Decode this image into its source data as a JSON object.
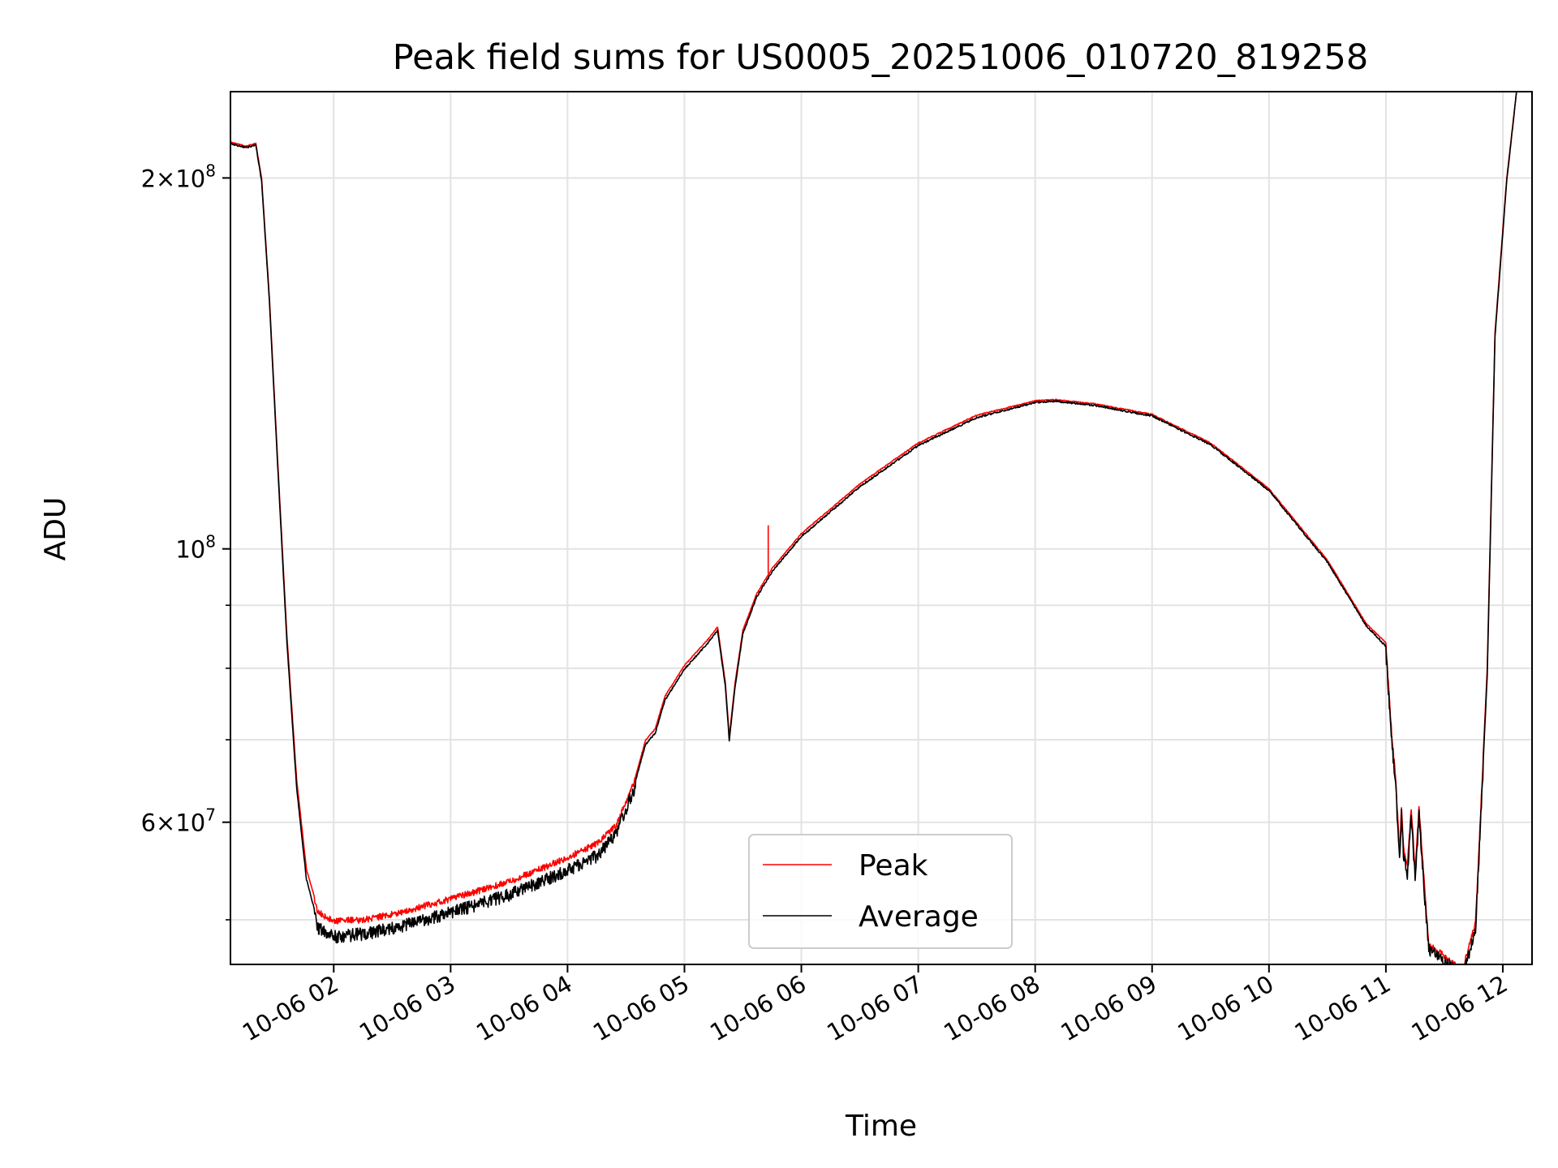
{
  "chart_data": {
    "type": "line",
    "title": "Peak field sums for US0005_20251006_010720_819258",
    "xlabel": "Time",
    "ylabel": "ADU",
    "x_axis_type": "datetime",
    "y_scale": "log",
    "xlim": [
      "2025-10-06 01:07",
      "2025-10-06 12:15"
    ],
    "ylim": [
      46000000,
      235000000
    ],
    "grid": true,
    "legend_position": "lower-center",
    "x_tick_labels": [
      "10-06 02",
      "10-06 03",
      "10-06 04",
      "10-06 05",
      "10-06 06",
      "10-06 07",
      "10-06 08",
      "10-06 09",
      "10-06 10",
      "10-06 11",
      "10-06 12"
    ],
    "x_ticks": [
      "2025-10-06 02:00",
      "2025-10-06 03:00",
      "2025-10-06 04:00",
      "2025-10-06 05:00",
      "2025-10-06 06:00",
      "2025-10-06 07:00",
      "2025-10-06 08:00",
      "2025-10-06 09:00",
      "2025-10-06 10:00",
      "2025-10-06 11:00",
      "2025-10-06 12:00"
    ],
    "y_major_ticks": [
      {
        "value": 200000000,
        "mantissa": "2",
        "exponent": "8"
      },
      {
        "value": 100000000,
        "mantissa": "",
        "exponent": "8"
      },
      {
        "value": 60000000,
        "mantissa": "6",
        "exponent": "7"
      }
    ],
    "y_minor_grid": [
      50000000,
      70000000,
      80000000,
      90000000
    ],
    "series": [
      {
        "name": "Peak",
        "color": "#ff0000",
        "noise": 0.012,
        "points": [
          [
            "2025-10-06 01:07",
            214000000
          ],
          [
            "2025-10-06 01:15",
            212500000
          ],
          [
            "2025-10-06 01:20",
            213500000
          ],
          [
            "2025-10-06 01:23",
            200000000
          ],
          [
            "2025-10-06 01:27",
            160000000
          ],
          [
            "2025-10-06 01:31",
            120000000
          ],
          [
            "2025-10-06 01:36",
            85000000
          ],
          [
            "2025-10-06 01:41",
            65000000
          ],
          [
            "2025-10-06 01:46",
            55000000
          ],
          [
            "2025-10-06 01:52",
            51000000
          ],
          [
            "2025-10-06 02:00",
            50200000
          ],
          [
            "2025-10-06 02:15",
            50300000
          ],
          [
            "2025-10-06 02:30",
            50800000
          ],
          [
            "2025-10-06 03:00",
            52300000
          ],
          [
            "2025-10-06 03:30",
            54000000
          ],
          [
            "2025-10-06 04:00",
            56500000
          ],
          [
            "2025-10-06 04:15",
            58000000
          ],
          [
            "2025-10-06 04:25",
            60000000
          ],
          [
            "2025-10-06 04:35",
            65500000
          ],
          [
            "2025-10-06 04:40",
            70000000
          ],
          [
            "2025-10-06 04:45",
            71500000
          ],
          [
            "2025-10-06 04:50",
            76000000
          ],
          [
            "2025-10-06 05:00",
            80500000
          ],
          [
            "2025-10-06 05:12",
            84500000
          ],
          [
            "2025-10-06 05:17",
            86500000
          ],
          [
            "2025-10-06 05:21",
            78000000
          ],
          [
            "2025-10-06 05:23",
            70500000
          ],
          [
            "2025-10-06 05:26",
            78000000
          ],
          [
            "2025-10-06 05:30",
            86000000
          ],
          [
            "2025-10-06 05:37",
            92000000
          ],
          [
            "2025-10-06 05:45",
            96500000
          ],
          [
            "2025-10-06 06:00",
            103000000
          ],
          [
            "2025-10-06 06:30",
            113000000
          ],
          [
            "2025-10-06 07:00",
            122000000
          ],
          [
            "2025-10-06 07:30",
            128500000
          ],
          [
            "2025-10-06 08:00",
            132000000
          ],
          [
            "2025-10-06 08:10",
            132300000
          ],
          [
            "2025-10-06 08:30",
            131300000
          ],
          [
            "2025-10-06 09:00",
            128700000
          ],
          [
            "2025-10-06 09:30",
            122000000
          ],
          [
            "2025-10-06 10:00",
            112000000
          ],
          [
            "2025-10-06 10:30",
            98000000
          ],
          [
            "2025-10-06 10:50",
            87000000
          ],
          [
            "2025-10-06 11:00",
            84000000
          ],
          [
            "2025-10-06 11:03",
            71000000
          ],
          [
            "2025-10-06 11:05",
            65500000
          ],
          [
            "2025-10-06 11:07",
            57000000
          ],
          [
            "2025-10-06 11:08",
            62000000
          ],
          [
            "2025-10-06 11:09",
            57500000
          ],
          [
            "2025-10-06 11:11",
            55500000
          ],
          [
            "2025-10-06 11:13",
            62000000
          ],
          [
            "2025-10-06 11:15",
            55000000
          ],
          [
            "2025-10-06 11:17",
            62000000
          ],
          [
            "2025-10-06 11:20",
            53000000
          ],
          [
            "2025-10-06 11:22",
            48000000
          ],
          [
            "2025-10-06 11:30",
            47000000
          ],
          [
            "2025-10-06 11:37",
            46000000
          ],
          [
            "2025-10-06 11:40",
            46200000
          ],
          [
            "2025-10-06 11:46",
            50000000
          ],
          [
            "2025-10-06 11:52",
            80000000
          ],
          [
            "2025-10-06 11:56",
            150000000
          ],
          [
            "2025-10-06 12:02",
            200000000
          ],
          [
            "2025-10-06 12:07",
            235000000
          ]
        ]
      },
      {
        "name": "Average",
        "color": "#000000",
        "noise": 0.015,
        "points": [
          [
            "2025-10-06 01:07",
            213500000
          ],
          [
            "2025-10-06 01:15",
            212000000
          ],
          [
            "2025-10-06 01:20",
            213000000
          ],
          [
            "2025-10-06 01:23",
            199000000
          ],
          [
            "2025-10-06 01:27",
            159000000
          ],
          [
            "2025-10-06 01:31",
            119000000
          ],
          [
            "2025-10-06 01:36",
            84000000
          ],
          [
            "2025-10-06 01:41",
            64000000
          ],
          [
            "2025-10-06 01:46",
            54000000
          ],
          [
            "2025-10-06 01:52",
            49800000
          ],
          [
            "2025-10-06 02:00",
            49000000
          ],
          [
            "2025-10-06 02:15",
            49300000
          ],
          [
            "2025-10-06 02:30",
            49800000
          ],
          [
            "2025-10-06 03:00",
            51300000
          ],
          [
            "2025-10-06 03:30",
            53000000
          ],
          [
            "2025-10-06 04:00",
            55500000
          ],
          [
            "2025-10-06 04:15",
            57000000
          ],
          [
            "2025-10-06 04:25",
            59500000
          ],
          [
            "2025-10-06 04:35",
            65000000
          ],
          [
            "2025-10-06 04:40",
            69500000
          ],
          [
            "2025-10-06 04:45",
            71000000
          ],
          [
            "2025-10-06 04:50",
            75500000
          ],
          [
            "2025-10-06 05:00",
            80000000
          ],
          [
            "2025-10-06 05:12",
            84000000
          ],
          [
            "2025-10-06 05:17",
            86000000
          ],
          [
            "2025-10-06 05:21",
            77500000
          ],
          [
            "2025-10-06 05:23",
            70000000
          ],
          [
            "2025-10-06 05:26",
            77500000
          ],
          [
            "2025-10-06 05:30",
            85500000
          ],
          [
            "2025-10-06 05:37",
            91500000
          ],
          [
            "2025-10-06 05:45",
            96000000
          ],
          [
            "2025-10-06 06:00",
            102500000
          ],
          [
            "2025-10-06 06:30",
            112500000
          ],
          [
            "2025-10-06 07:00",
            121500000
          ],
          [
            "2025-10-06 07:30",
            128000000
          ],
          [
            "2025-10-06 08:00",
            131700000
          ],
          [
            "2025-10-06 08:10",
            132000000
          ],
          [
            "2025-10-06 08:30",
            131000000
          ],
          [
            "2025-10-06 09:00",
            128400000
          ],
          [
            "2025-10-06 09:30",
            121700000
          ],
          [
            "2025-10-06 10:00",
            111700000
          ],
          [
            "2025-10-06 10:30",
            97700000
          ],
          [
            "2025-10-06 10:50",
            86700000
          ],
          [
            "2025-10-06 11:00",
            83500000
          ],
          [
            "2025-10-06 11:03",
            70500000
          ],
          [
            "2025-10-06 11:05",
            65000000
          ],
          [
            "2025-10-06 11:07",
            56500000
          ],
          [
            "2025-10-06 11:08",
            61500000
          ],
          [
            "2025-10-06 11:09",
            57000000
          ],
          [
            "2025-10-06 11:11",
            55000000
          ],
          [
            "2025-10-06 11:13",
            61500000
          ],
          [
            "2025-10-06 11:15",
            54500000
          ],
          [
            "2025-10-06 11:17",
            61500000
          ],
          [
            "2025-10-06 11:20",
            52500000
          ],
          [
            "2025-10-06 11:22",
            47800000
          ],
          [
            "2025-10-06 11:30",
            46800000
          ],
          [
            "2025-10-06 11:37",
            45800000
          ],
          [
            "2025-10-06 11:40",
            46000000
          ],
          [
            "2025-10-06 11:46",
            49500000
          ],
          [
            "2025-10-06 11:52",
            79000000
          ],
          [
            "2025-10-06 11:56",
            149000000
          ],
          [
            "2025-10-06 12:02",
            199000000
          ],
          [
            "2025-10-06 12:07",
            235000000
          ]
        ]
      }
    ],
    "spike": {
      "series": "Peak",
      "x": "2025-10-06 05:43",
      "y_from": 95500000,
      "y_to": 104500000
    }
  }
}
